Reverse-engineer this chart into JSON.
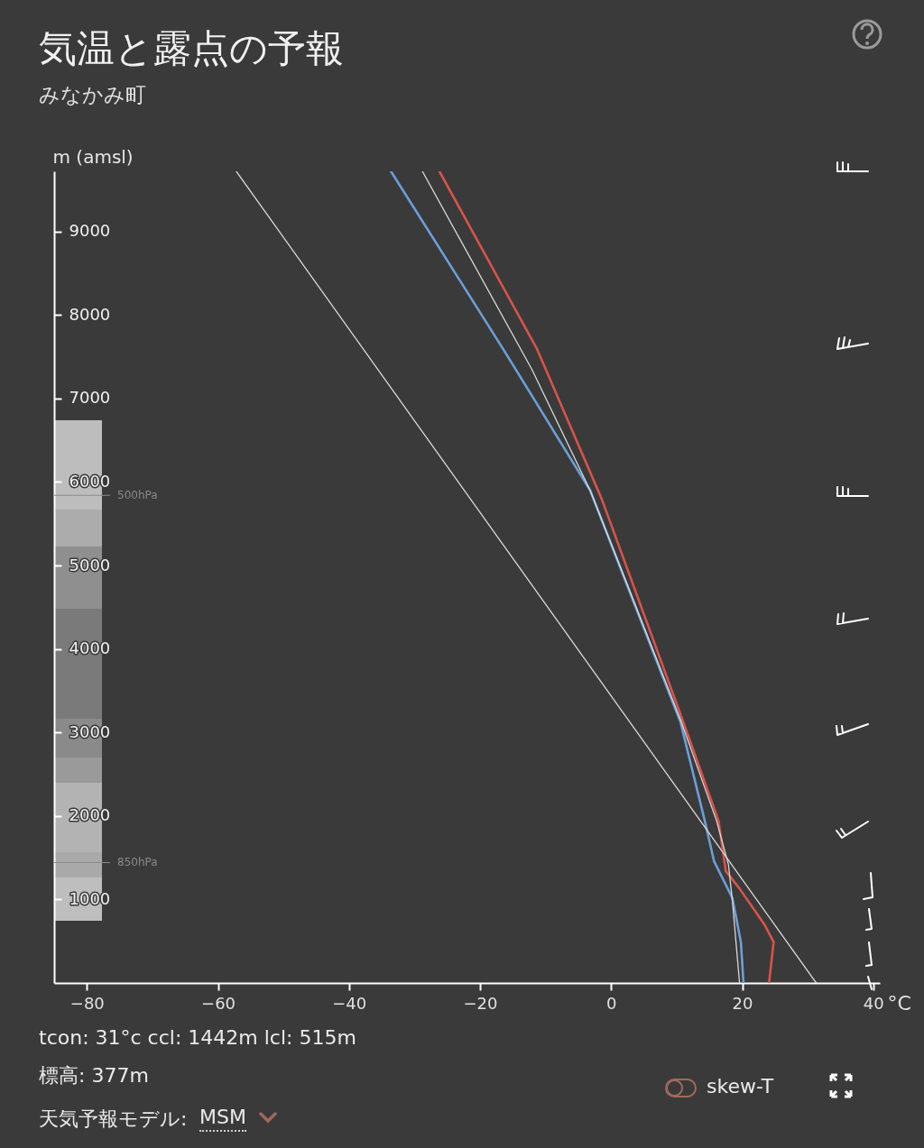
{
  "chart_data": {
    "type": "line",
    "title": "気温と露点の予報",
    "subtitle": "みなかみ町",
    "ylabel": "m (amsl)",
    "xlabel": "°C",
    "xlim": [
      -85,
      41
    ],
    "xticks": [
      -80,
      -60,
      -40,
      -20,
      0,
      20,
      40
    ],
    "ylim": [
      0,
      9720
    ],
    "yticks": [
      1000,
      2000,
      3000,
      4000,
      5000,
      6000,
      7000,
      8000,
      9000
    ],
    "grid": false,
    "series": [
      {
        "color": "#d9534a",
        "x": [
          24.1,
          24.8,
          23.4,
          19.6,
          17.5,
          16.4,
          10.9,
          -1.4,
          -11.3,
          -26.2
        ],
        "values": [
          0,
          490,
          700,
          1130,
          1340,
          1940,
          3150,
          5790,
          7590,
          9720
        ]
      },
      {
        "color": "#6b9fd9",
        "x": [
          20.2,
          19.8,
          18.5,
          15.7,
          14.3,
          10.6,
          -3.2,
          -16.3,
          -33.6
        ],
        "values": [
          0,
          490,
          1020,
          1460,
          1940,
          3120,
          5900,
          7570,
          9720
        ]
      },
      {
        "color": "#d8d8d8",
        "x": [
          31.3,
          -57.2
        ],
        "values": [
          0,
          9720
        ]
      },
      {
        "color": "#d8d8d8",
        "x": [
          19.6,
          18.5,
          17.9,
          16.1,
          10.6,
          -3.2,
          -12.1,
          -28.8
        ],
        "values": [
          0,
          990,
          1420,
          1940,
          3150,
          5900,
          7350,
          9720
        ]
      }
    ],
    "ref_lines": [
      {
        "axis": "y",
        "value": 5840,
        "label": "500hPa",
        "color": "#8a8a8a"
      },
      {
        "axis": "y",
        "value": 1442,
        "label": "850hPa",
        "color": "#8a8a8a"
      }
    ],
    "annotations": [
      "tcon: 31°c ccl: 1442m lcl: 515m",
      "標高: 377m",
      "天気予報モデル:",
      "MSM",
      "skew-T"
    ]
  }
}
